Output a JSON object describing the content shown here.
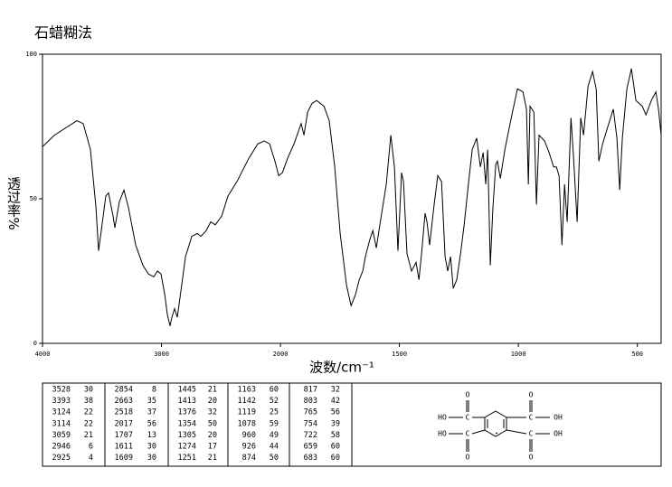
{
  "chart_data": {
    "type": "line",
    "title": "石蜡糊法",
    "xlabel": "波数/cm⁻¹",
    "ylabel": "透过率%",
    "color": "#000000",
    "xlim": [
      4000,
      400
    ],
    "ylim": [
      0,
      100
    ],
    "xticks": [
      4000,
      3000,
      2000,
      1500,
      1000,
      500
    ],
    "yticks": [
      0,
      50,
      100
    ],
    "x": [
      4000,
      3900,
      3711,
      3658,
      3597,
      3551,
      3529,
      3506,
      3468,
      3445,
      3407,
      3392,
      3354,
      3316,
      3278,
      3217,
      3156,
      3110,
      3065,
      3034,
      3004,
      2973,
      2951,
      2928,
      2913,
      2890,
      2867,
      2844,
      2798,
      2745,
      2700,
      2669,
      2624,
      2586,
      2548,
      2494,
      2441,
      2365,
      2266,
      2190,
      2137,
      2091,
      2046,
      2015,
      1992,
      1970,
      1943,
      1913,
      1901,
      1886,
      1867,
      1848,
      1817,
      1795,
      1772,
      1749,
      1722,
      1703,
      1684,
      1669,
      1654,
      1643,
      1624,
      1612,
      1597,
      1582,
      1555,
      1536,
      1521,
      1506,
      1491,
      1483,
      1468,
      1449,
      1430,
      1418,
      1407,
      1392,
      1384,
      1373,
      1354,
      1339,
      1323,
      1308,
      1297,
      1285,
      1274,
      1259,
      1243,
      1228,
      1209,
      1194,
      1175,
      1160,
      1148,
      1137,
      1129,
      1118,
      1107,
      1095,
      1088,
      1076,
      1057,
      1030,
      1004,
      981,
      966,
      958,
      951,
      935,
      924,
      913,
      890,
      871,
      852,
      840,
      829,
      817,
      806,
      795,
      779,
      768,
      753,
      738,
      726,
      707,
      688,
      673,
      662,
      646,
      624,
      601,
      586,
      574,
      563,
      544,
      525,
      506,
      479,
      464,
      441,
      422,
      411,
      400
    ],
    "values": [
      68,
      72,
      77,
      76,
      67,
      47,
      32,
      39,
      51,
      52,
      44,
      40,
      49,
      53,
      47,
      34,
      27,
      24,
      23,
      25,
      24,
      17,
      10,
      6,
      9,
      12,
      9,
      16,
      30,
      37,
      38,
      37,
      39,
      42,
      41,
      44,
      51,
      56,
      64,
      69,
      70,
      69,
      63,
      58,
      59,
      64,
      69,
      76,
      72,
      80,
      83,
      84,
      82,
      77,
      61,
      38,
      20,
      13,
      17,
      22,
      25,
      30,
      36,
      39,
      33,
      41,
      55,
      72,
      61,
      32,
      59,
      56,
      31,
      25,
      28,
      22,
      31,
      45,
      42,
      34,
      48,
      58,
      56,
      30,
      25,
      30,
      19,
      22,
      31,
      41,
      56,
      67,
      71,
      61,
      66,
      55,
      67,
      27,
      47,
      62,
      63,
      57,
      67,
      78,
      88,
      87,
      81,
      55,
      82,
      80,
      48,
      72,
      70,
      66,
      61,
      61,
      58,
      34,
      55,
      42,
      78,
      64,
      42,
      78,
      72,
      89,
      94,
      88,
      63,
      69,
      75,
      81,
      71,
      53,
      71,
      88,
      95,
      84,
      82,
      79,
      84,
      87,
      81,
      72
    ]
  },
  "peak_table": {
    "rows": [
      [
        "3528",
        "30"
      ],
      [
        "3393",
        "38"
      ],
      [
        "3124",
        "22"
      ],
      [
        "3114",
        "22"
      ],
      [
        "3059",
        "21"
      ],
      [
        "2946",
        "6"
      ],
      [
        "2925",
        "4"
      ],
      [
        "2854",
        "8"
      ],
      [
        "2663",
        "35"
      ],
      [
        "2518",
        "37"
      ],
      [
        "2017",
        "56"
      ],
      [
        "1707",
        "13"
      ],
      [
        "1611",
        "30"
      ],
      [
        "1609",
        "30"
      ],
      [
        "1445",
        "21"
      ],
      [
        "1413",
        "20"
      ],
      [
        "1376",
        "32"
      ],
      [
        "1354",
        "50"
      ],
      [
        "1305",
        "20"
      ],
      [
        "1274",
        "17"
      ],
      [
        "1251",
        "21"
      ],
      [
        "1163",
        "60"
      ],
      [
        "1142",
        "52"
      ],
      [
        "1119",
        "25"
      ],
      [
        "1078",
        "59"
      ],
      [
        "960",
        "49"
      ],
      [
        "926",
        "44"
      ],
      [
        "874",
        "50"
      ],
      [
        "817",
        "32"
      ],
      [
        "803",
        "42"
      ],
      [
        "765",
        "56"
      ],
      [
        "754",
        "39"
      ],
      [
        "722",
        "58"
      ],
      [
        "659",
        "60"
      ],
      [
        "683",
        "60"
      ]
    ]
  },
  "structure": {
    "labels": [
      "O",
      "O",
      "HO",
      "C",
      "C",
      "OH",
      "HO",
      "C",
      "C",
      "OH",
      "O",
      "O"
    ]
  }
}
